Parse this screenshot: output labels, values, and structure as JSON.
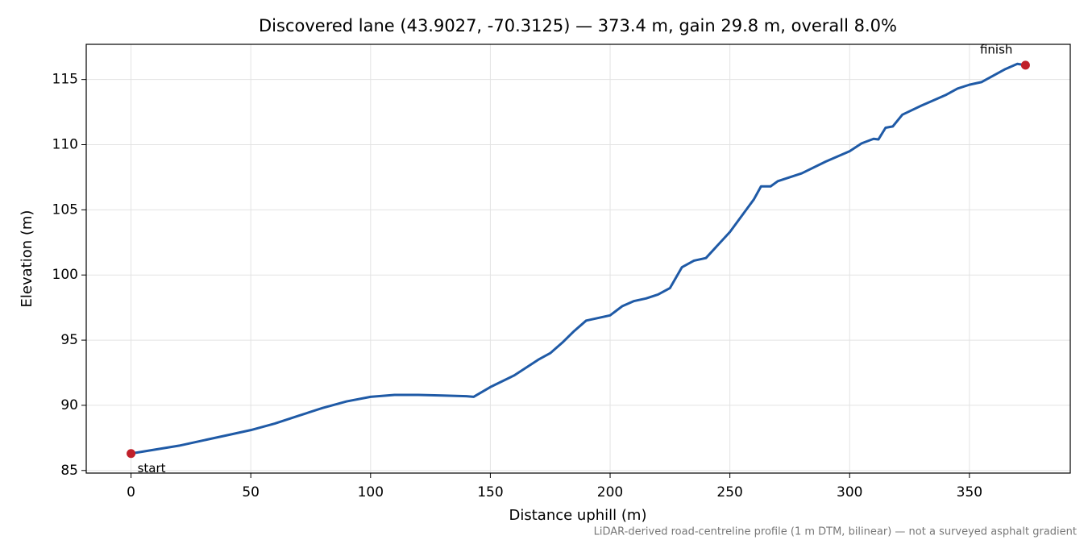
{
  "chart_data": {
    "type": "line",
    "title": "Discovered lane (43.9027, -70.3125) — 373.4 m, gain 29.8 m, overall 8.0%",
    "x_label": "Distance uphill (m)",
    "y_label": "Elevation (m)",
    "footnote": "LiDAR-derived road-centreline profile (1 m DTM, bilinear) — not a surveyed asphalt gradient",
    "x": [
      0,
      10,
      20,
      30,
      40,
      50,
      60,
      70,
      80,
      90,
      100,
      110,
      120,
      130,
      140,
      143,
      150,
      160,
      170,
      175,
      180,
      185,
      190,
      200,
      205,
      210,
      215,
      220,
      225,
      230,
      235,
      240,
      250,
      260,
      263,
      267,
      270,
      280,
      290,
      300,
      305,
      310,
      312,
      315,
      318,
      322,
      330,
      340,
      345,
      350,
      355,
      360,
      365,
      370,
      373.4
    ],
    "values": [
      86.3,
      86.6,
      86.9,
      87.3,
      87.7,
      88.1,
      88.6,
      89.2,
      89.8,
      90.3,
      90.65,
      90.8,
      90.8,
      90.75,
      90.7,
      90.65,
      91.4,
      92.3,
      93.5,
      94.0,
      94.8,
      95.7,
      96.5,
      96.9,
      97.6,
      98.0,
      98.2,
      98.5,
      99.0,
      100.6,
      101.1,
      101.3,
      103.3,
      105.8,
      106.8,
      106.8,
      107.2,
      107.8,
      108.7,
      109.5,
      110.1,
      110.45,
      110.4,
      111.3,
      111.4,
      112.3,
      113.0,
      113.8,
      114.3,
      114.6,
      114.8,
      115.3,
      115.8,
      116.2,
      116.1
    ],
    "color": "#1f5aa6",
    "endpoints": {
      "x": [
        0,
        373.4
      ],
      "y": [
        86.3,
        116.1
      ],
      "labels": [
        "start",
        "finish"
      ],
      "color": "#c0202a"
    },
    "xlim": [
      -18.7,
      392.1
    ],
    "ylim": [
      84.8,
      117.7
    ],
    "xticks": [
      0,
      50,
      100,
      150,
      200,
      250,
      300,
      350
    ],
    "yticks": [
      85,
      90,
      95,
      100,
      105,
      110,
      115
    ],
    "grid": true
  }
}
